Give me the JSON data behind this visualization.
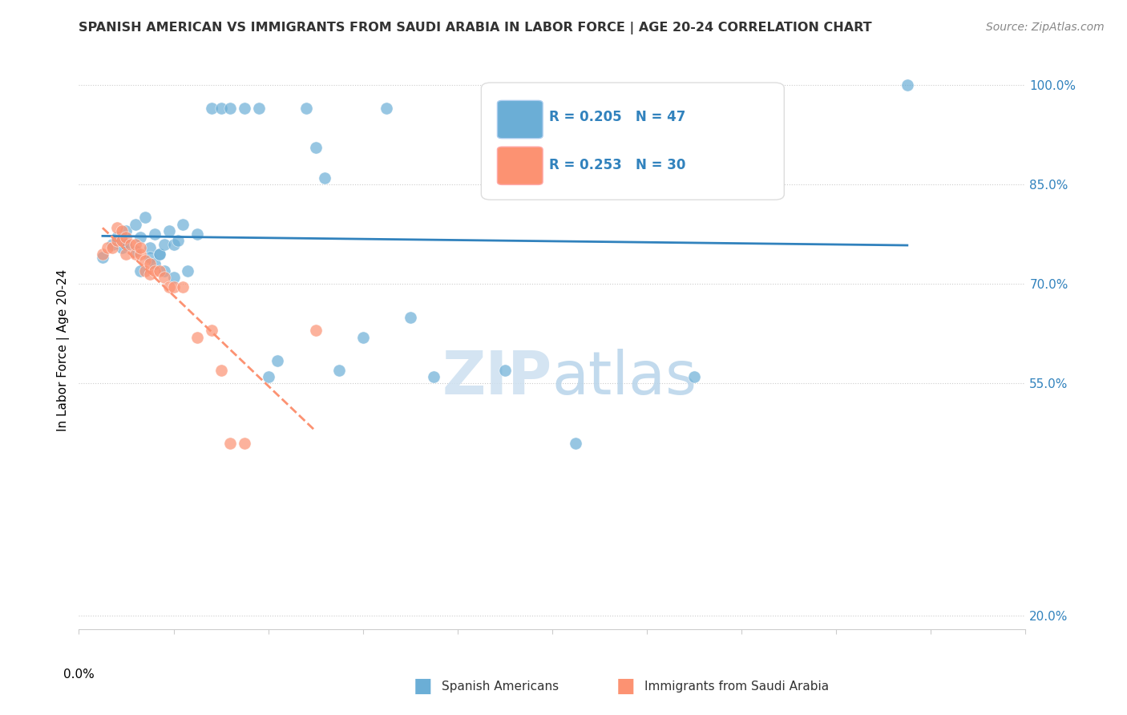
{
  "title": "SPANISH AMERICAN VS IMMIGRANTS FROM SAUDI ARABIA IN LABOR FORCE | AGE 20-24 CORRELATION CHART",
  "source": "Source: ZipAtlas.com",
  "ylabel": "In Labor Force | Age 20-24",
  "ylabel_right_ticks": [
    "20.0%",
    "55.0%",
    "70.0%",
    "85.0%",
    "100.0%"
  ],
  "ylabel_right_vals": [
    0.2,
    0.55,
    0.7,
    0.85,
    1.0
  ],
  "xlim": [
    0.0,
    0.2
  ],
  "ylim": [
    0.18,
    1.02
  ],
  "R_blue": 0.205,
  "N_blue": 47,
  "R_pink": 0.253,
  "N_pink": 30,
  "blue_color": "#6baed6",
  "pink_color": "#fc9272",
  "blue_line_color": "#3182bd",
  "legend_R_color": "#3182bd",
  "blue_scatter_x": [
    0.005,
    0.007,
    0.008,
    0.009,
    0.01,
    0.01,
    0.012,
    0.012,
    0.013,
    0.013,
    0.014,
    0.015,
    0.015,
    0.016,
    0.016,
    0.017,
    0.017,
    0.018,
    0.018,
    0.019,
    0.02,
    0.02,
    0.021,
    0.022,
    0.023,
    0.025,
    0.028,
    0.03,
    0.032,
    0.035,
    0.038,
    0.04,
    0.042,
    0.048,
    0.05,
    0.052,
    0.055,
    0.06,
    0.065,
    0.07,
    0.075,
    0.09,
    0.1,
    0.105,
    0.115,
    0.13,
    0.175
  ],
  "blue_scatter_y": [
    0.74,
    0.76,
    0.77,
    0.755,
    0.78,
    0.76,
    0.79,
    0.75,
    0.77,
    0.72,
    0.8,
    0.755,
    0.74,
    0.73,
    0.775,
    0.745,
    0.745,
    0.76,
    0.72,
    0.78,
    0.71,
    0.76,
    0.765,
    0.79,
    0.72,
    0.775,
    0.965,
    0.965,
    0.965,
    0.965,
    0.965,
    0.56,
    0.585,
    0.965,
    0.905,
    0.86,
    0.57,
    0.62,
    0.965,
    0.65,
    0.56,
    0.57,
    0.965,
    0.46,
    0.88,
    0.56,
    1.0
  ],
  "pink_scatter_x": [
    0.005,
    0.006,
    0.007,
    0.008,
    0.008,
    0.009,
    0.009,
    0.01,
    0.01,
    0.011,
    0.012,
    0.012,
    0.013,
    0.013,
    0.014,
    0.014,
    0.015,
    0.015,
    0.016,
    0.017,
    0.018,
    0.019,
    0.02,
    0.022,
    0.025,
    0.028,
    0.03,
    0.032,
    0.035,
    0.05
  ],
  "pink_scatter_y": [
    0.745,
    0.755,
    0.755,
    0.785,
    0.765,
    0.765,
    0.78,
    0.745,
    0.77,
    0.76,
    0.745,
    0.76,
    0.745,
    0.755,
    0.735,
    0.72,
    0.715,
    0.73,
    0.72,
    0.72,
    0.71,
    0.695,
    0.695,
    0.695,
    0.62,
    0.63,
    0.57,
    0.46,
    0.46,
    0.63
  ]
}
